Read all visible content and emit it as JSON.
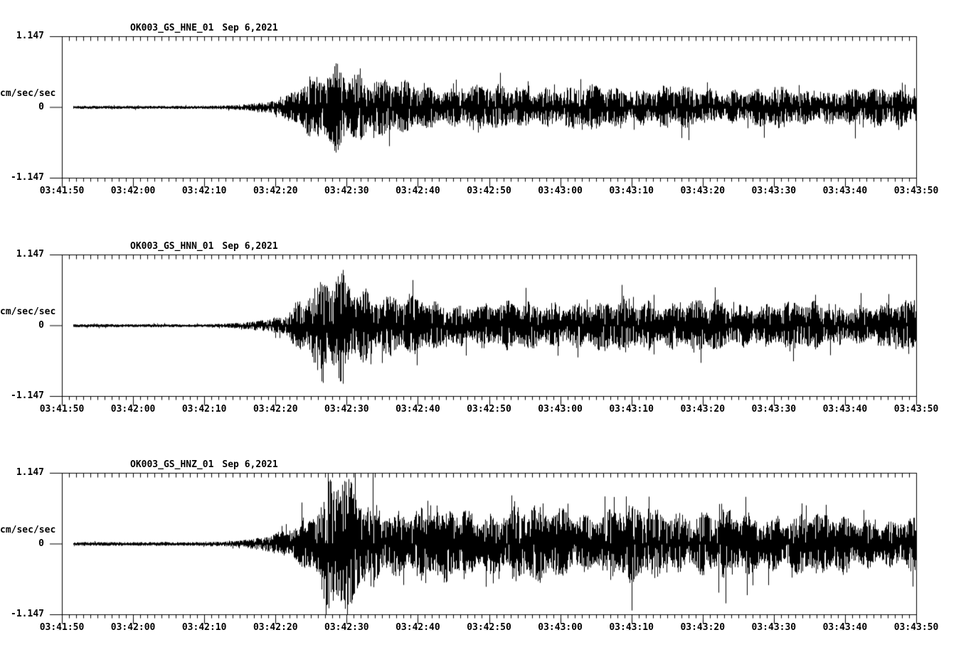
{
  "figure": {
    "background_color": "#ffffff",
    "trace_color": "#000000",
    "axis_color": "#000000"
  },
  "chart_data": [
    {
      "type": "line",
      "subtype": "seismogram",
      "station": "OK003_GS_HNE_01",
      "date": "Sep 6,2021",
      "title": "OK003_GS_HNE_01  Sep 6,2021",
      "ylabel": "cm/sec/sec",
      "ymax_label": "1.147",
      "yzero_label": "0",
      "ymin_label": "-1.147",
      "ylim": [
        -1.147,
        1.147
      ],
      "x_span_seconds": 120,
      "x_major_tick_seconds": 10,
      "x_minor_tick_seconds": 1,
      "x_tick_labels": [
        "03:41:50",
        "03:42:00",
        "03:42:10",
        "03:42:20",
        "03:42:30",
        "03:42:40",
        "03:42:50",
        "03:43:00",
        "03:43:10",
        "03:43:20",
        "03:43:30",
        "03:43:40",
        "03:43:50"
      ],
      "trace_start_seconds": 1.6,
      "seed": 11,
      "envelope": [
        [
          0,
          0.022
        ],
        [
          20,
          0.022
        ],
        [
          23,
          0.028
        ],
        [
          26,
          0.045
        ],
        [
          29,
          0.08
        ],
        [
          32,
          0.16
        ],
        [
          34,
          0.3
        ],
        [
          36,
          0.42
        ],
        [
          37.5,
          0.52
        ],
        [
          39,
          0.62
        ],
        [
          40.5,
          0.5
        ],
        [
          42,
          0.45
        ],
        [
          44,
          0.36
        ],
        [
          46,
          0.32
        ],
        [
          49,
          0.3
        ],
        [
          52,
          0.28
        ],
        [
          56,
          0.26
        ],
        [
          60,
          0.27
        ],
        [
          64,
          0.25
        ],
        [
          68,
          0.26
        ],
        [
          72,
          0.25
        ],
        [
          76,
          0.26
        ],
        [
          80,
          0.24
        ],
        [
          84,
          0.25
        ],
        [
          88,
          0.23
        ],
        [
          92,
          0.24
        ],
        [
          96,
          0.23
        ],
        [
          100,
          0.24
        ],
        [
          104,
          0.22
        ],
        [
          108,
          0.23
        ],
        [
          112,
          0.22
        ],
        [
          116,
          0.23
        ],
        [
          120,
          0.26
        ]
      ]
    },
    {
      "type": "line",
      "subtype": "seismogram",
      "station": "OK003_GS_HNN_01",
      "date": "Sep 6,2021",
      "title": "OK003_GS_HNN_01  Sep 6,2021",
      "ylabel": "cm/sec/sec",
      "ymax_label": "1.147",
      "yzero_label": "0",
      "ymin_label": "-1.147",
      "ylim": [
        -1.147,
        1.147
      ],
      "x_span_seconds": 120,
      "x_major_tick_seconds": 10,
      "x_minor_tick_seconds": 1,
      "x_tick_labels": [
        "03:41:50",
        "03:42:00",
        "03:42:10",
        "03:42:20",
        "03:42:30",
        "03:42:40",
        "03:42:50",
        "03:43:00",
        "03:43:10",
        "03:43:20",
        "03:43:30",
        "03:43:40",
        "03:43:50"
      ],
      "trace_start_seconds": 1.6,
      "seed": 22,
      "envelope": [
        [
          0,
          0.022
        ],
        [
          20,
          0.022
        ],
        [
          23,
          0.028
        ],
        [
          26,
          0.05
        ],
        [
          29,
          0.09
        ],
        [
          32,
          0.2
        ],
        [
          34,
          0.38
        ],
        [
          36,
          0.5
        ],
        [
          38,
          0.6
        ],
        [
          39.5,
          0.68
        ],
        [
          41,
          0.55
        ],
        [
          43,
          0.48
        ],
        [
          45,
          0.4
        ],
        [
          48,
          0.34
        ],
        [
          51,
          0.3
        ],
        [
          54,
          0.28
        ],
        [
          58,
          0.3
        ],
        [
          62,
          0.27
        ],
        [
          66,
          0.29
        ],
        [
          70,
          0.31
        ],
        [
          74,
          0.28
        ],
        [
          78,
          0.3
        ],
        [
          82,
          0.33
        ],
        [
          86,
          0.29
        ],
        [
          90,
          0.31
        ],
        [
          94,
          0.28
        ],
        [
          98,
          0.3
        ],
        [
          102,
          0.28
        ],
        [
          106,
          0.29
        ],
        [
          110,
          0.27
        ],
        [
          114,
          0.26
        ],
        [
          117,
          0.27
        ],
        [
          120,
          0.3
        ]
      ]
    },
    {
      "type": "line",
      "subtype": "seismogram",
      "station": "OK003_GS_HNZ_01",
      "date": "Sep 6,2021",
      "title": "OK003_GS_HNZ_01  Sep 6,2021",
      "ylabel": "cm/sec/sec",
      "ymax_label": "1.147",
      "yzero_label": "0",
      "ymin_label": "-1.147",
      "ylim": [
        -1.147,
        1.147
      ],
      "x_span_seconds": 120,
      "x_major_tick_seconds": 10,
      "x_minor_tick_seconds": 1,
      "x_tick_labels": [
        "03:41:50",
        "03:42:00",
        "03:42:10",
        "03:42:20",
        "03:42:30",
        "03:42:40",
        "03:42:50",
        "03:43:00",
        "03:43:10",
        "03:43:20",
        "03:43:30",
        "03:43:40",
        "03:43:50"
      ],
      "trace_start_seconds": 1.6,
      "seed": 33,
      "envelope": [
        [
          0,
          0.026
        ],
        [
          20,
          0.026
        ],
        [
          23,
          0.034
        ],
        [
          26,
          0.06
        ],
        [
          29,
          0.11
        ],
        [
          32,
          0.22
        ],
        [
          34,
          0.36
        ],
        [
          36,
          0.55
        ],
        [
          37.5,
          0.78
        ],
        [
          39,
          0.88
        ],
        [
          40.5,
          0.7
        ],
        [
          42,
          0.6
        ],
        [
          44,
          0.52
        ],
        [
          47,
          0.46
        ],
        [
          50,
          0.44
        ],
        [
          53,
          0.42
        ],
        [
          56,
          0.44
        ],
        [
          59,
          0.4
        ],
        [
          62,
          0.43
        ],
        [
          65,
          0.46
        ],
        [
          68,
          0.42
        ],
        [
          71,
          0.44
        ],
        [
          74,
          0.4
        ],
        [
          77,
          0.43
        ],
        [
          80,
          0.45
        ],
        [
          83,
          0.41
        ],
        [
          86,
          0.43
        ],
        [
          89,
          0.39
        ],
        [
          92,
          0.41
        ],
        [
          95,
          0.37
        ],
        [
          98,
          0.39
        ],
        [
          101,
          0.36
        ],
        [
          104,
          0.38
        ],
        [
          107,
          0.34
        ],
        [
          110,
          0.36
        ],
        [
          113,
          0.33
        ],
        [
          116,
          0.31
        ],
        [
          120,
          0.33
        ]
      ]
    }
  ]
}
